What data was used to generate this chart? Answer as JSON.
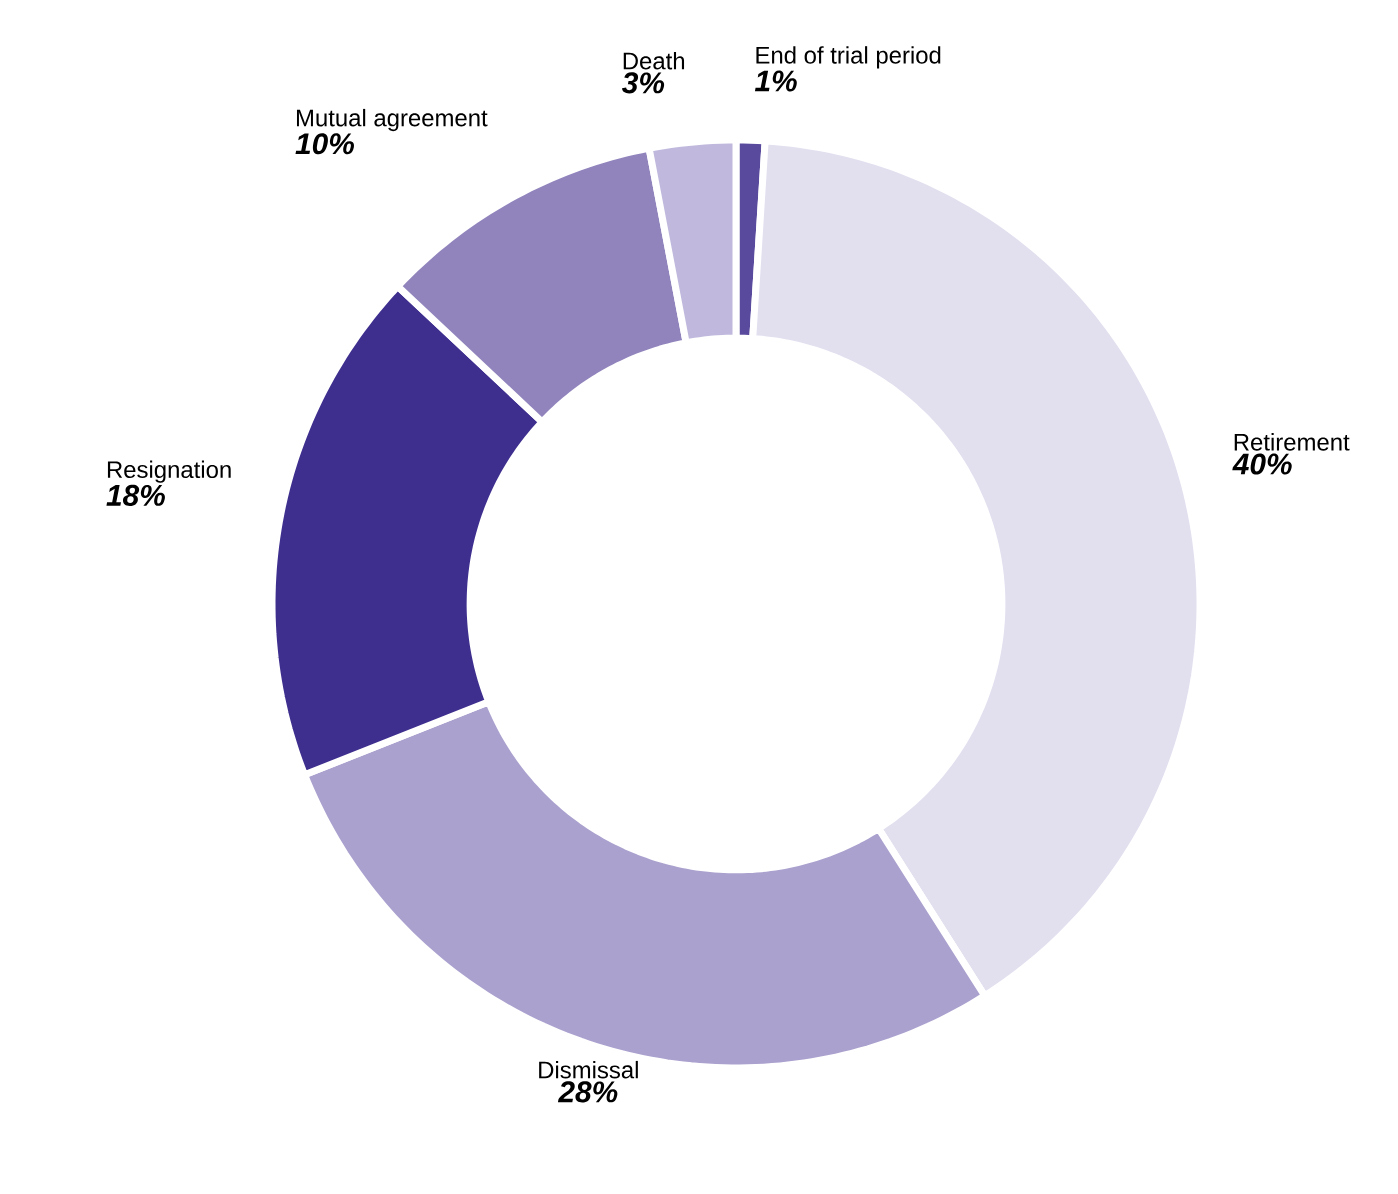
{
  "chart_data": {
    "type": "donut",
    "categories": [
      "End of trial period",
      "Retirement",
      "Dismissal",
      "Resignation",
      "Mutual agreement",
      "Death"
    ],
    "values": [
      1,
      40,
      28,
      18,
      10,
      3
    ],
    "colors": [
      "#5a4a9e",
      "#e2dfef",
      "#aba1cf",
      "#3e2f8f",
      "#9184bd",
      "#c0b9dd"
    ],
    "value_labels": [
      "1%",
      "40%",
      "28%",
      "18%",
      "10%",
      "3%"
    ]
  }
}
